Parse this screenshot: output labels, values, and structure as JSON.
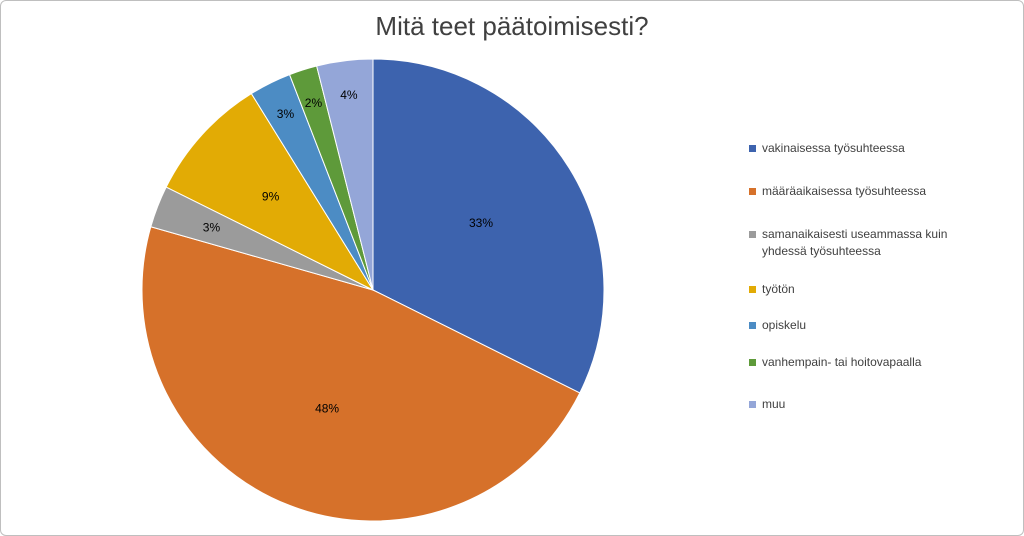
{
  "chart_data": {
    "type": "pie",
    "title": "Mitä teet päätoimisesti?",
    "categories": [
      "vakinaisessa työsuhteessa",
      "määräaikaisessa työsuhteessa",
      "samanaikaisesti useammassa kuin yhdessä työsuhteessa",
      "työtön",
      "opiskelu",
      "vanhempain- tai hoitovapaalla",
      "muu"
    ],
    "values": [
      33,
      48,
      3,
      9,
      3,
      2,
      4
    ],
    "labels": [
      "33%",
      "48%",
      "3%",
      "9%",
      "3%",
      "2%",
      "4%"
    ],
    "colors": [
      "#3d63ae",
      "#d6712a",
      "#9b9b9b",
      "#e2ab05",
      "#4c8cc4",
      "#5e9a3a",
      "#94a6d8"
    ],
    "legend_position": "right"
  }
}
